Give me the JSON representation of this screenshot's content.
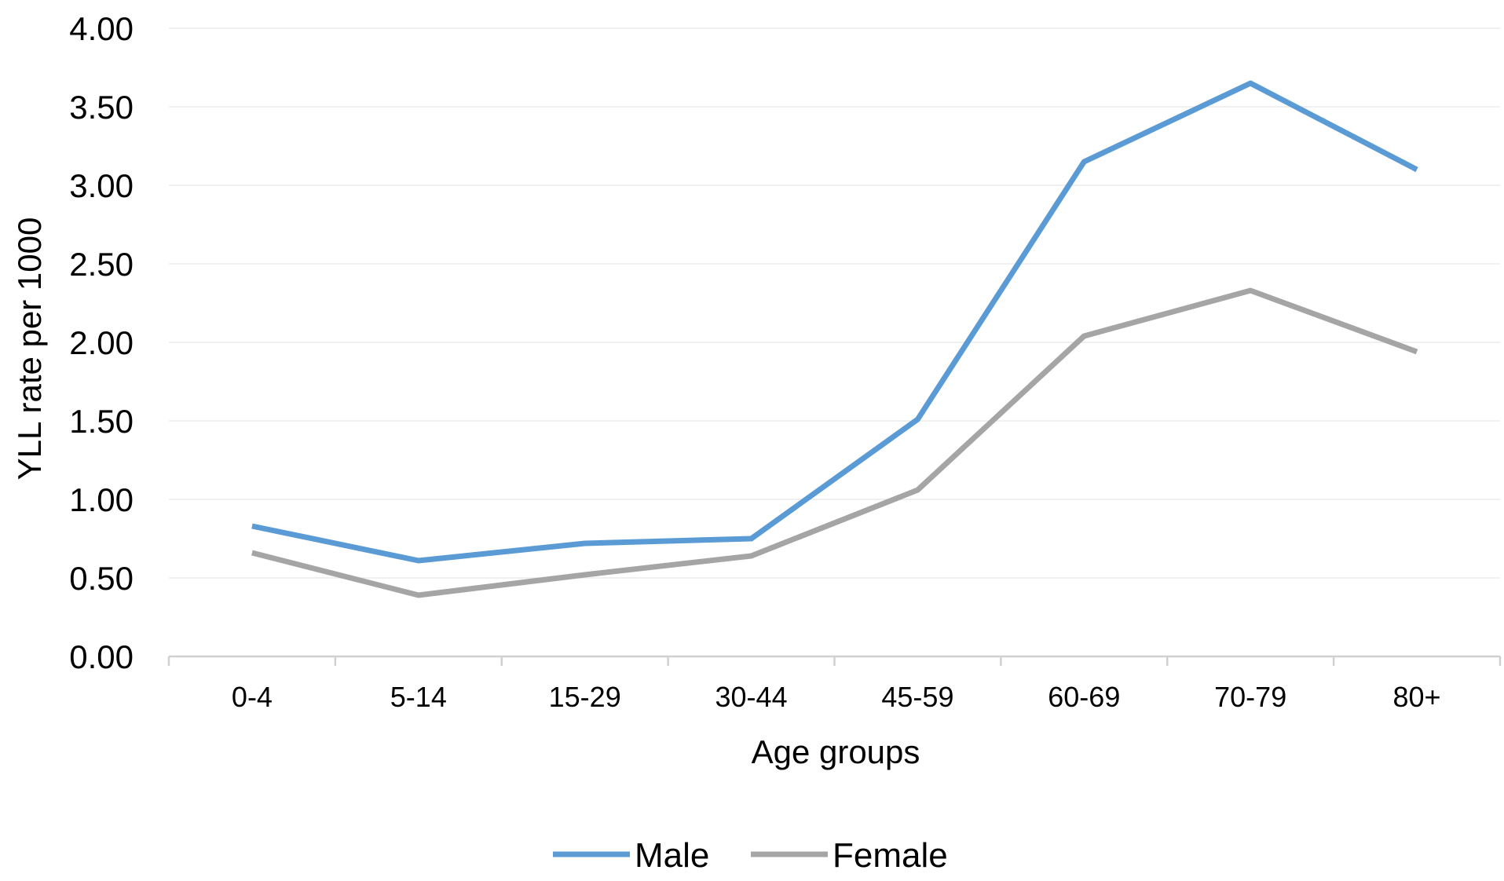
{
  "chart_data": {
    "type": "line",
    "categories": [
      "0-4",
      "5-14",
      "15-29",
      "30-44",
      "45-59",
      "60-69",
      "70-79",
      "80+"
    ],
    "series": [
      {
        "name": "Male",
        "color": "#5B9BD5",
        "values": [
          0.83,
          0.61,
          0.72,
          0.75,
          1.51,
          3.15,
          3.65,
          3.1
        ]
      },
      {
        "name": "Female",
        "color": "#A5A5A5",
        "values": [
          0.66,
          0.39,
          0.52,
          0.64,
          1.06,
          2.04,
          2.33,
          1.94
        ]
      }
    ],
    "xlabel": "Age groups",
    "ylabel": "YLL rate per 1000",
    "ylim": [
      0,
      4
    ],
    "yticks": [
      "0.00",
      "0.50",
      "1.00",
      "1.50",
      "2.00",
      "2.50",
      "3.00",
      "3.50",
      "4.00"
    ],
    "grid": true,
    "legend_position": "bottom"
  }
}
